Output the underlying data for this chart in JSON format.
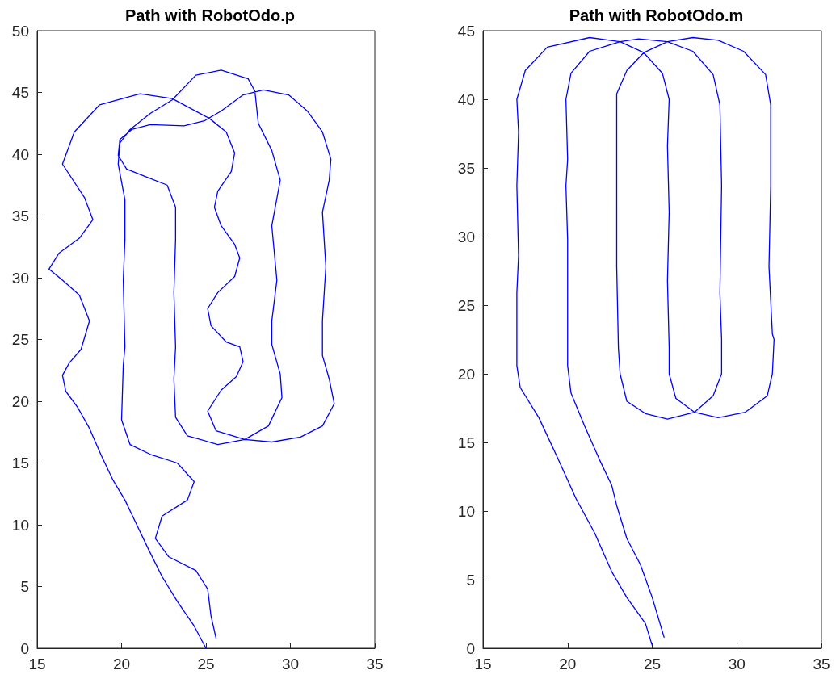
{
  "chart_data": [
    {
      "type": "line",
      "title": "Path with RobotOdo.p",
      "color": "#0000ff",
      "marker": "none",
      "grid": false,
      "x": [
        25.0,
        24.3,
        23.3,
        22.4,
        21.6,
        20.9,
        20.2,
        19.5,
        18.8,
        18.1,
        17.4,
        16.7,
        16.5,
        16.9,
        17.6,
        18.1,
        17.5,
        16.5,
        15.7,
        16.3,
        17.5,
        18.3,
        17.8,
        16.5,
        17.2,
        18.7,
        21.1,
        23.0,
        25.2,
        26.2,
        26.7,
        26.5,
        25.7,
        25.5,
        25.9,
        26.7,
        27.0,
        26.7,
        25.7,
        25.1,
        25.3,
        26.2,
        27.0,
        27.2,
        26.8,
        25.9,
        25.1,
        25.6,
        27.3,
        28.9,
        30.6,
        31.9,
        32.6,
        32.3,
        31.9,
        31.9,
        31.9,
        32.1,
        31.9,
        32.3,
        32.4,
        31.9,
        31.0,
        29.9,
        28.4,
        27.2,
        25.9,
        24.9,
        23.7,
        21.7,
        20.6,
        19.9,
        19.8,
        20.3,
        21.4,
        22.7,
        23.2,
        23.2,
        23.1,
        23.2,
        23.1,
        23.2,
        23.9,
        25.7,
        27.3,
        28.7,
        29.5,
        29.4,
        28.9,
        28.9,
        29.2,
        28.9,
        29.4,
        28.9,
        28.1,
        27.9,
        27.5,
        25.9,
        24.4,
        23.0,
        21.7,
        20.5,
        19.9,
        19.8,
        20.2,
        20.2,
        20.1,
        20.2,
        20.1,
        20.0,
        20.5,
        21.7,
        23.3,
        24.3,
        23.9,
        22.4,
        22.0,
        22.8,
        24.4,
        25.1,
        25.3,
        25.6
      ],
      "values": [
        0.0,
        1.8,
        3.8,
        5.8,
        8.0,
        10.0,
        12.0,
        13.6,
        15.6,
        17.8,
        19.5,
        20.8,
        22.1,
        23.1,
        24.2,
        26.5,
        28.6,
        29.8,
        30.7,
        32.0,
        33.2,
        34.7,
        36.5,
        39.2,
        41.8,
        44.0,
        44.9,
        44.5,
        42.9,
        41.8,
        40.1,
        38.6,
        37.0,
        35.7,
        34.2,
        32.7,
        31.6,
        30.1,
        28.8,
        27.5,
        26.1,
        24.8,
        24.4,
        23.2,
        22.0,
        20.9,
        19.2,
        17.6,
        16.9,
        16.7,
        17.1,
        18.0,
        19.8,
        21.8,
        23.7,
        25.0,
        26.5,
        30.9,
        35.3,
        37.9,
        39.6,
        41.8,
        43.5,
        44.8,
        45.2,
        44.8,
        43.5,
        42.7,
        42.3,
        42.4,
        42.0,
        41.2,
        39.9,
        38.8,
        38.2,
        37.5,
        35.7,
        33.1,
        28.8,
        24.4,
        21.8,
        18.7,
        17.2,
        16.5,
        16.9,
        18.0,
        20.3,
        22.2,
        24.6,
        26.5,
        29.8,
        34.2,
        37.9,
        40.3,
        42.5,
        45.1,
        46.1,
        46.8,
        46.4,
        44.4,
        43.3,
        42.0,
        40.9,
        39.2,
        36.3,
        33.1,
        29.8,
        24.4,
        22.9,
        18.5,
        16.5,
        15.7,
        15.0,
        13.5,
        12.0,
        10.7,
        8.9,
        7.4,
        6.3,
        4.8,
        2.6,
        0.8
      ],
      "xlim": [
        15,
        35
      ],
      "xticks": [
        15,
        20,
        25,
        30,
        35
      ],
      "ylim": [
        0,
        50
      ],
      "yticks": [
        0,
        5,
        10,
        15,
        20,
        25,
        30,
        35,
        40,
        45,
        50
      ]
    },
    {
      "type": "line",
      "title": "Path with RobotOdo.m",
      "color": "#0000ff",
      "marker": "none",
      "grid": false,
      "x": [
        25.0,
        24.6,
        23.5,
        22.6,
        21.6,
        20.5,
        19.4,
        18.3,
        17.2,
        17.0,
        17.0,
        17.0,
        17.1,
        17.0,
        17.1,
        17.0,
        17.5,
        18.8,
        21.3,
        23.1,
        24.5,
        25.6,
        26.0,
        25.9,
        26.0,
        25.9,
        26.0,
        26.0,
        26.4,
        27.5,
        28.9,
        30.5,
        31.8,
        32.1,
        32.2,
        32.1,
        31.9,
        32.0,
        32.0,
        31.7,
        30.4,
        28.9,
        27.4,
        25.9,
        24.5,
        23.5,
        22.9,
        22.9,
        22.9,
        22.9,
        23.0,
        23.1,
        23.5,
        24.6,
        25.9,
        27.5,
        28.6,
        29.1,
        29.1,
        29.0,
        29.1,
        29.0,
        28.6,
        27.4,
        25.9,
        24.2,
        23.1,
        21.3,
        20.2,
        19.9,
        20.0,
        19.9,
        20.0,
        20.0,
        20.0,
        20.0,
        20.2,
        21.0,
        21.9,
        22.6,
        22.9,
        23.5,
        24.3,
        25.0,
        25.7
      ],
      "values": [
        0.2,
        1.8,
        3.7,
        5.6,
        8.4,
        10.9,
        13.9,
        16.8,
        19.0,
        20.6,
        22.5,
        25.9,
        28.6,
        33.7,
        37.6,
        40.0,
        42.1,
        43.8,
        44.5,
        44.2,
        43.4,
        41.9,
        40.0,
        36.6,
        31.8,
        26.8,
        21.9,
        20.0,
        18.2,
        17.2,
        16.8,
        17.2,
        18.4,
        20.0,
        22.5,
        22.9,
        27.8,
        33.7,
        39.6,
        41.8,
        43.5,
        44.3,
        44.5,
        44.2,
        43.4,
        42.1,
        40.4,
        37.6,
        33.7,
        27.8,
        21.9,
        20.0,
        18.0,
        17.1,
        16.7,
        17.2,
        18.4,
        20.0,
        22.5,
        25.9,
        33.7,
        39.6,
        41.8,
        43.5,
        44.2,
        44.4,
        44.2,
        43.5,
        41.9,
        40.0,
        35.6,
        33.7,
        29.8,
        25.9,
        21.9,
        20.6,
        18.6,
        16.2,
        13.7,
        11.9,
        10.4,
        8.0,
        6.1,
        3.7,
        0.8
      ],
      "xlim": [
        15,
        35
      ],
      "xticks": [
        15,
        20,
        25,
        30,
        35
      ],
      "ylim": [
        0,
        45
      ],
      "yticks": [
        0,
        5,
        10,
        15,
        20,
        25,
        30,
        35,
        40,
        45
      ]
    }
  ]
}
